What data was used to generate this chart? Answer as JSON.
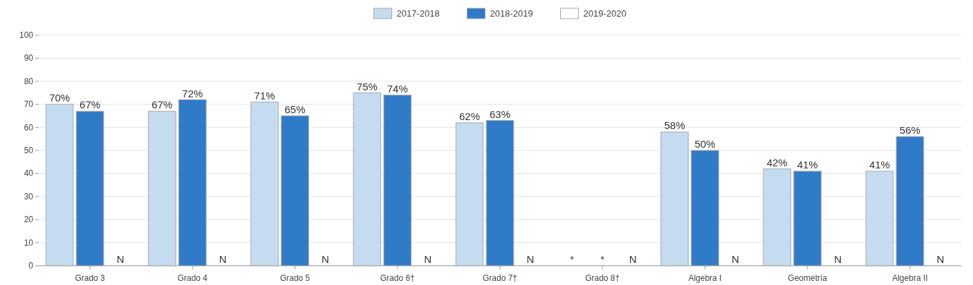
{
  "chart_data": {
    "type": "bar",
    "categories": [
      "Grado 3",
      "Grado 4",
      "Grado 5",
      "Grado 6†",
      "Grado 7†",
      "Grado 8†",
      "Algebra I",
      "Geometría",
      "Algebra II"
    ],
    "series": [
      {
        "name": "2017-2018",
        "color": "#c5dbf0",
        "values": [
          70,
          67,
          71,
          75,
          62,
          null,
          58,
          42,
          41
        ],
        "value_labels": [
          "70%",
          "67%",
          "71%",
          "75%",
          "62%",
          "*",
          "58%",
          "42%",
          "41%"
        ]
      },
      {
        "name": "2018-2019",
        "color": "#2f7bc8",
        "values": [
          67,
          72,
          65,
          74,
          63,
          null,
          50,
          41,
          56
        ],
        "value_labels": [
          "67%",
          "72%",
          "65%",
          "74%",
          "63%",
          "*",
          "50%",
          "41%",
          "56%"
        ]
      },
      {
        "name": "2019-2020",
        "color": "#ffffff",
        "values": [
          null,
          null,
          null,
          null,
          null,
          null,
          null,
          null,
          null
        ],
        "value_labels": [
          "N",
          "N",
          "N",
          "N",
          "N",
          "N",
          "N",
          "N",
          "N"
        ]
      }
    ],
    "ylim": [
      0,
      100
    ],
    "yticks": [
      0,
      10,
      20,
      30,
      40,
      50,
      60,
      70,
      80,
      90,
      100
    ],
    "grid": "y",
    "legend": "top"
  }
}
